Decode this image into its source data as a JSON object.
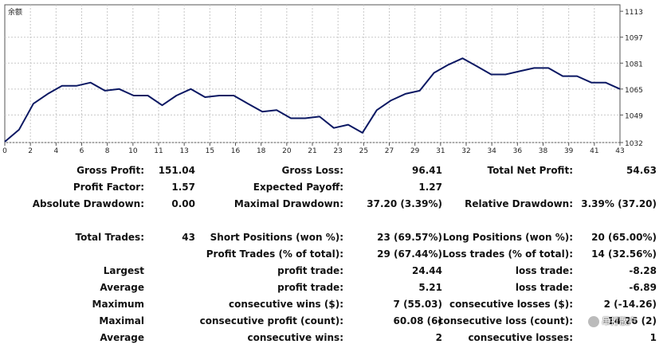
{
  "chart_data": {
    "type": "line",
    "title": "余额",
    "x_tick_labels": [
      "0",
      "2",
      "4",
      "6",
      "8",
      "10",
      "11",
      "13",
      "15",
      "16",
      "18",
      "20",
      "21",
      "23",
      "25",
      "27",
      "29",
      "31",
      "32",
      "34",
      "36",
      "38",
      "39",
      "41",
      "43"
    ],
    "y_tick_labels": [
      "1113",
      "1097",
      "1081",
      "1065",
      "1049",
      "1032"
    ],
    "ylim": [
      1032,
      1117
    ],
    "grid": true,
    "x": [
      0,
      1,
      2,
      3,
      4,
      5,
      6,
      7,
      8,
      9,
      10,
      11,
      12,
      13,
      14,
      15,
      16,
      17,
      18,
      19,
      20,
      21,
      22,
      23,
      24,
      25,
      26,
      27,
      28,
      29,
      30,
      31,
      32,
      33,
      34,
      35,
      36,
      37,
      38,
      39,
      40,
      41,
      42,
      43
    ],
    "values": [
      1032.5,
      1040,
      1056,
      1062,
      1067,
      1067,
      1069,
      1064,
      1065,
      1061,
      1061,
      1055,
      1061,
      1065,
      1060,
      1061,
      1061,
      1056,
      1051,
      1052,
      1047,
      1047,
      1048,
      1041,
      1043,
      1038,
      1052,
      1058,
      1062,
      1064,
      1075,
      1080,
      1084,
      1079,
      1074,
      1074,
      1076,
      1078,
      1078,
      1073,
      1073,
      1069,
      1069,
      1065
    ],
    "color": "#0b1863"
  },
  "stats": {
    "gross_profit_label": "Gross Profit:",
    "gross_profit": "151.04",
    "gross_loss_label": "Gross Loss:",
    "gross_loss": "96.41",
    "total_net_profit_label": "Total Net Profit:",
    "total_net_profit": "54.63",
    "profit_factor_label": "Profit Factor:",
    "profit_factor": "1.57",
    "expected_payoff_label": "Expected Payoff:",
    "expected_payoff": "1.27",
    "absolute_drawdown_label": "Absolute Drawdown:",
    "absolute_drawdown": "0.00",
    "maximal_drawdown_label": "Maximal Drawdown:",
    "maximal_drawdown": "37.20 (3.39%)",
    "relative_drawdown_label": "Relative Drawdown:",
    "relative_drawdown": "3.39% (37.20)",
    "total_trades_label": "Total Trades:",
    "total_trades": "43",
    "short_positions_label": "Short Positions (won %):",
    "short_positions": "23 (69.57%)",
    "long_positions_label": "Long Positions (won %):",
    "long_positions": "20 (65.00%)",
    "profit_trades_label": "Profit Trades (% of total):",
    "profit_trades": "29 (67.44%)",
    "loss_trades_label": "Loss trades (% of total):",
    "loss_trades": "14 (32.56%)",
    "largest_label": "Largest",
    "largest_profit_label": "profit trade:",
    "largest_profit": "24.44",
    "largest_loss_label": "loss trade:",
    "largest_loss": "-8.28",
    "average_label": "Average",
    "average_profit_label": "profit trade:",
    "average_profit": "5.21",
    "average_loss_label": "loss trade:",
    "average_loss": "-6.89",
    "maximum_label": "Maximum",
    "max_consec_wins_label": "consecutive wins ($):",
    "max_consec_wins": "7 (55.03)",
    "max_consec_losses_label": "consecutive losses ($):",
    "max_consec_losses": "2 (-14.26)",
    "maximal_label": "Maximal",
    "maximal_consec_profit_label": "consecutive profit (count):",
    "maximal_consec_profit": "60.08 (6)",
    "maximal_consec_loss_label": "consecutive loss (count):",
    "maximal_consec_loss": "-14.26 (2)",
    "average2_label": "Average",
    "avg_consec_wins_label": "consecutive wins:",
    "avg_consec_wins": "2",
    "avg_consec_losses_label": "consecutive losses:",
    "avg_consec_losses": "1"
  },
  "watermark": {
    "text": "吊打散户",
    "icon": "wechat-icon"
  }
}
